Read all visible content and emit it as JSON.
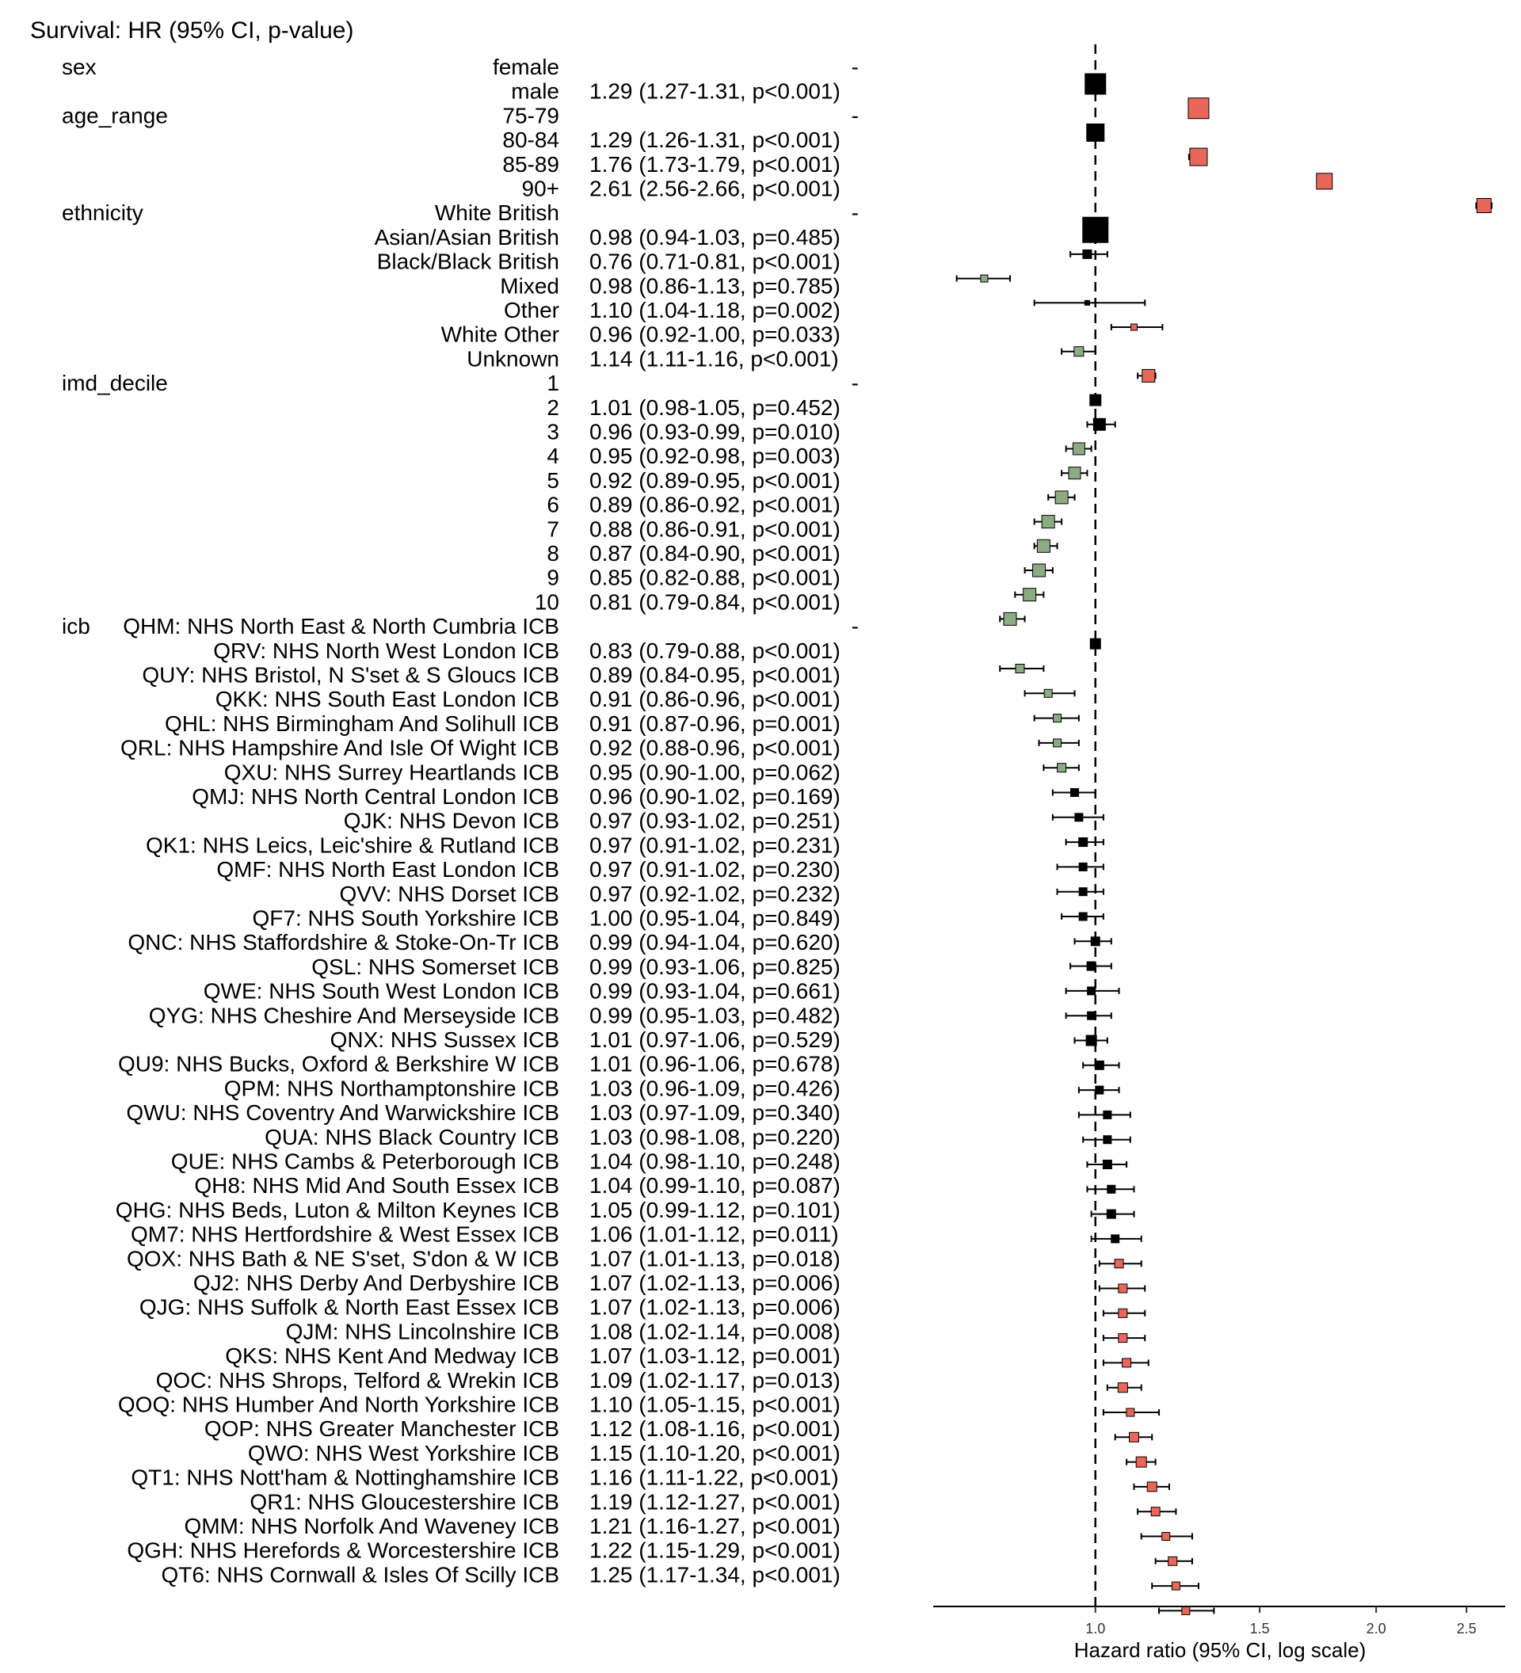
{
  "chart_data": {
    "type": "forest",
    "title": "Survival: HR (95% CI, p-value)",
    "xlabel": "Hazard ratio (95% CI, log scale)",
    "xscale": "log",
    "reference_line": 1.0,
    "xticks": [
      1.0,
      1.5,
      2.0,
      2.5
    ],
    "tick_labels": [
      "1.0",
      "1.5",
      "2.0",
      "2.5"
    ],
    "colors": {
      "reference": "#000000",
      "higher": "#e8675a",
      "lower": "#8bac82",
      "ns": "#000000"
    },
    "rows": [
      {
        "variable": "sex",
        "level": "female",
        "text": "-",
        "hr": 1.0,
        "lo": 1.0,
        "hi": 1.0,
        "size": 26,
        "color": "reference"
      },
      {
        "variable": "",
        "level": "male",
        "text": "1.29 (1.27-1.31, p<0.001)",
        "hr": 1.29,
        "lo": 1.27,
        "hi": 1.31,
        "size": 26,
        "color": "higher"
      },
      {
        "variable": "age_range",
        "level": "75-79",
        "text": "-",
        "hr": 1.0,
        "lo": 1.0,
        "hi": 1.0,
        "size": 22,
        "color": "reference"
      },
      {
        "variable": "",
        "level": "80-84",
        "text": "1.29 (1.26-1.31, p<0.001)",
        "hr": 1.29,
        "lo": 1.26,
        "hi": 1.31,
        "size": 22,
        "color": "higher"
      },
      {
        "variable": "",
        "level": "85-89",
        "text": "1.76 (1.73-1.79, p<0.001)",
        "hr": 1.76,
        "lo": 1.73,
        "hi": 1.79,
        "size": 20,
        "color": "higher"
      },
      {
        "variable": "",
        "level": "90+",
        "text": "2.61 (2.56-2.66, p<0.001)",
        "hr": 2.61,
        "lo": 2.56,
        "hi": 2.66,
        "size": 18,
        "color": "higher"
      },
      {
        "variable": "ethnicity",
        "level": "White British",
        "text": "-",
        "hr": 1.0,
        "lo": 1.0,
        "hi": 1.0,
        "size": 32,
        "color": "reference"
      },
      {
        "variable": "",
        "level": "Asian/Asian British",
        "text": "0.98 (0.94-1.03, p=0.485)",
        "hr": 0.98,
        "lo": 0.94,
        "hi": 1.03,
        "size": 11,
        "color": "ns"
      },
      {
        "variable": "",
        "level": "Black/Black British",
        "text": "0.76 (0.71-0.81, p<0.001)",
        "hr": 0.76,
        "lo": 0.71,
        "hi": 0.81,
        "size": 9,
        "color": "lower"
      },
      {
        "variable": "",
        "level": "Mixed",
        "text": "0.98 (0.86-1.13, p=0.785)",
        "hr": 0.98,
        "lo": 0.86,
        "hi": 1.13,
        "size": 6,
        "color": "ns"
      },
      {
        "variable": "",
        "level": "Other",
        "text": "1.10 (1.04-1.18, p=0.002)",
        "hr": 1.1,
        "lo": 1.04,
        "hi": 1.18,
        "size": 8,
        "color": "higher"
      },
      {
        "variable": "",
        "level": "White Other",
        "text": "0.96 (0.92-1.00, p=0.033)",
        "hr": 0.96,
        "lo": 0.92,
        "hi": 1.0,
        "size": 12,
        "color": "lower"
      },
      {
        "variable": "",
        "level": "Unknown",
        "text": "1.14 (1.11-1.16, p<0.001)",
        "hr": 1.14,
        "lo": 1.11,
        "hi": 1.16,
        "size": 16,
        "color": "higher"
      },
      {
        "variable": "imd_decile",
        "level": "1",
        "text": "-",
        "hr": 1.0,
        "lo": 1.0,
        "hi": 1.0,
        "size": 14,
        "color": "reference"
      },
      {
        "variable": "",
        "level": "2",
        "text": "1.01 (0.98-1.05, p=0.452)",
        "hr": 1.01,
        "lo": 0.98,
        "hi": 1.05,
        "size": 15,
        "color": "ns"
      },
      {
        "variable": "",
        "level": "3",
        "text": "0.96 (0.93-0.99, p=0.010)",
        "hr": 0.96,
        "lo": 0.93,
        "hi": 0.99,
        "size": 15,
        "color": "lower"
      },
      {
        "variable": "",
        "level": "4",
        "text": "0.95 (0.92-0.98, p=0.003)",
        "hr": 0.95,
        "lo": 0.92,
        "hi": 0.98,
        "size": 15,
        "color": "lower"
      },
      {
        "variable": "",
        "level": "5",
        "text": "0.92 (0.89-0.95, p<0.001)",
        "hr": 0.92,
        "lo": 0.89,
        "hi": 0.95,
        "size": 16,
        "color": "lower"
      },
      {
        "variable": "",
        "level": "6",
        "text": "0.89 (0.86-0.92, p<0.001)",
        "hr": 0.89,
        "lo": 0.86,
        "hi": 0.92,
        "size": 16,
        "color": "lower"
      },
      {
        "variable": "",
        "level": "7",
        "text": "0.88 (0.86-0.91, p<0.001)",
        "hr": 0.88,
        "lo": 0.86,
        "hi": 0.91,
        "size": 16,
        "color": "lower"
      },
      {
        "variable": "",
        "level": "8",
        "text": "0.87 (0.84-0.90, p<0.001)",
        "hr": 0.87,
        "lo": 0.84,
        "hi": 0.9,
        "size": 16,
        "color": "lower"
      },
      {
        "variable": "",
        "level": "9",
        "text": "0.85 (0.82-0.88, p<0.001)",
        "hr": 0.85,
        "lo": 0.82,
        "hi": 0.88,
        "size": 16,
        "color": "lower"
      },
      {
        "variable": "",
        "level": "10",
        "text": "0.81 (0.79-0.84, p<0.001)",
        "hr": 0.81,
        "lo": 0.79,
        "hi": 0.84,
        "size": 16,
        "color": "lower"
      },
      {
        "variable": "icb",
        "level": "QHM: NHS North East & North Cumbria ICB",
        "text": "-",
        "hr": 1.0,
        "lo": 1.0,
        "hi": 1.0,
        "size": 13,
        "color": "reference"
      },
      {
        "variable": "",
        "level": "QRV: NHS North West London ICB",
        "text": "0.83 (0.79-0.88, p<0.001)",
        "hr": 0.83,
        "lo": 0.79,
        "hi": 0.88,
        "size": 11,
        "color": "lower"
      },
      {
        "variable": "",
        "level": "QUY: NHS Bristol, N S'set & S Gloucs ICB",
        "text": "0.89 (0.84-0.95, p<0.001)",
        "hr": 0.89,
        "lo": 0.84,
        "hi": 0.95,
        "size": 10,
        "color": "lower"
      },
      {
        "variable": "",
        "level": "QKK: NHS South East London ICB",
        "text": "0.91 (0.86-0.96, p<0.001)",
        "hr": 0.91,
        "lo": 0.86,
        "hi": 0.96,
        "size": 10,
        "color": "lower"
      },
      {
        "variable": "",
        "level": "QHL: NHS Birmingham And Solihull ICB",
        "text": "0.91 (0.87-0.96, p=0.001)",
        "hr": 0.91,
        "lo": 0.87,
        "hi": 0.96,
        "size": 10,
        "color": "lower"
      },
      {
        "variable": "",
        "level": "QRL: NHS Hampshire And Isle Of Wight ICB",
        "text": "0.92 (0.88-0.96, p<0.001)",
        "hr": 0.92,
        "lo": 0.88,
        "hi": 0.96,
        "size": 11,
        "color": "lower"
      },
      {
        "variable": "",
        "level": "QXU: NHS Surrey Heartlands ICB",
        "text": "0.95 (0.90-1.00, p=0.062)",
        "hr": 0.95,
        "lo": 0.9,
        "hi": 1.0,
        "size": 10,
        "color": "ns"
      },
      {
        "variable": "",
        "level": "QMJ: NHS North Central London ICB",
        "text": "0.96 (0.90-1.02, p=0.169)",
        "hr": 0.96,
        "lo": 0.9,
        "hi": 1.02,
        "size": 10,
        "color": "ns"
      },
      {
        "variable": "",
        "level": "QJK: NHS Devon ICB",
        "text": "0.97 (0.93-1.02, p=0.251)",
        "hr": 0.97,
        "lo": 0.93,
        "hi": 1.02,
        "size": 11,
        "color": "ns"
      },
      {
        "variable": "",
        "level": "QK1: NHS Leics, Leic'shire & Rutland ICB",
        "text": "0.97 (0.91-1.02, p=0.231)",
        "hr": 0.97,
        "lo": 0.91,
        "hi": 1.02,
        "size": 10,
        "color": "ns"
      },
      {
        "variable": "",
        "level": "QMF: NHS North East London ICB",
        "text": "0.97 (0.91-1.02, p=0.230)",
        "hr": 0.97,
        "lo": 0.91,
        "hi": 1.02,
        "size": 10,
        "color": "ns"
      },
      {
        "variable": "",
        "level": "QVV: NHS Dorset ICB",
        "text": "0.97 (0.92-1.02, p=0.232)",
        "hr": 0.97,
        "lo": 0.92,
        "hi": 1.02,
        "size": 10,
        "color": "ns"
      },
      {
        "variable": "",
        "level": "QF7: NHS South Yorkshire ICB",
        "text": "1.00 (0.95-1.04, p=0.849)",
        "hr": 1.0,
        "lo": 0.95,
        "hi": 1.04,
        "size": 11,
        "color": "ns"
      },
      {
        "variable": "",
        "level": "QNC: NHS Staffordshire & Stoke-On-Tr ICB",
        "text": "0.99 (0.94-1.04, p=0.620)",
        "hr": 0.99,
        "lo": 0.94,
        "hi": 1.04,
        "size": 11,
        "color": "ns"
      },
      {
        "variable": "",
        "level": "QSL: NHS Somerset ICB",
        "text": "0.99 (0.93-1.06, p=0.825)",
        "hr": 0.99,
        "lo": 0.93,
        "hi": 1.06,
        "size": 10,
        "color": "ns"
      },
      {
        "variable": "",
        "level": "QWE: NHS South West London ICB",
        "text": "0.99 (0.93-1.04, p=0.661)",
        "hr": 0.99,
        "lo": 0.93,
        "hi": 1.04,
        "size": 10,
        "color": "ns"
      },
      {
        "variable": "",
        "level": "QYG: NHS Cheshire And Merseyside ICB",
        "text": "0.99 (0.95-1.03, p=0.482)",
        "hr": 0.99,
        "lo": 0.95,
        "hi": 1.03,
        "size": 13,
        "color": "ns"
      },
      {
        "variable": "",
        "level": "QNX: NHS Sussex ICB",
        "text": "1.01 (0.97-1.06, p=0.529)",
        "hr": 1.01,
        "lo": 0.97,
        "hi": 1.06,
        "size": 11,
        "color": "ns"
      },
      {
        "variable": "",
        "level": "QU9: NHS Bucks, Oxford & Berkshire W ICB",
        "text": "1.01 (0.96-1.06, p=0.678)",
        "hr": 1.01,
        "lo": 0.96,
        "hi": 1.06,
        "size": 10,
        "color": "ns"
      },
      {
        "variable": "",
        "level": "QPM: NHS Northamptonshire ICB",
        "text": "1.03 (0.96-1.09, p=0.426)",
        "hr": 1.03,
        "lo": 0.96,
        "hi": 1.09,
        "size": 10,
        "color": "ns"
      },
      {
        "variable": "",
        "level": "QWU: NHS Coventry And Warwickshire ICB",
        "text": "1.03 (0.97-1.09, p=0.340)",
        "hr": 1.03,
        "lo": 0.97,
        "hi": 1.09,
        "size": 10,
        "color": "ns"
      },
      {
        "variable": "",
        "level": "QUA: NHS Black Country ICB",
        "text": "1.03 (0.98-1.08, p=0.220)",
        "hr": 1.03,
        "lo": 0.98,
        "hi": 1.08,
        "size": 11,
        "color": "ns"
      },
      {
        "variable": "",
        "level": "QUE: NHS Cambs & Peterborough ICB",
        "text": "1.04 (0.98-1.10, p=0.248)",
        "hr": 1.04,
        "lo": 0.98,
        "hi": 1.1,
        "size": 10,
        "color": "ns"
      },
      {
        "variable": "",
        "level": "QH8: NHS Mid And South Essex ICB",
        "text": "1.04 (0.99-1.10, p=0.087)",
        "hr": 1.04,
        "lo": 0.99,
        "hi": 1.1,
        "size": 11,
        "color": "ns"
      },
      {
        "variable": "",
        "level": "QHG: NHS Beds, Luton & Milton Keynes ICB",
        "text": "1.05 (0.99-1.12, p=0.101)",
        "hr": 1.05,
        "lo": 0.99,
        "hi": 1.12,
        "size": 10,
        "color": "ns"
      },
      {
        "variable": "",
        "level": "QM7: NHS Hertfordshire & West Essex ICB",
        "text": "1.06 (1.01-1.12, p=0.011)",
        "hr": 1.06,
        "lo": 1.01,
        "hi": 1.12,
        "size": 11,
        "color": "higher"
      },
      {
        "variable": "",
        "level": "QOX: NHS Bath & NE S'set, S'don & W ICB",
        "text": "1.07 (1.01-1.13, p=0.018)",
        "hr": 1.07,
        "lo": 1.01,
        "hi": 1.13,
        "size": 11,
        "color": "higher"
      },
      {
        "variable": "",
        "level": "QJ2: NHS Derby And Derbyshire ICB",
        "text": "1.07 (1.02-1.13, p=0.006)",
        "hr": 1.07,
        "lo": 1.02,
        "hi": 1.13,
        "size": 11,
        "color": "higher"
      },
      {
        "variable": "",
        "level": "QJG: NHS Suffolk & North East Essex ICB",
        "text": "1.07 (1.02-1.13, p=0.006)",
        "hr": 1.07,
        "lo": 1.02,
        "hi": 1.13,
        "size": 11,
        "color": "higher"
      },
      {
        "variable": "",
        "level": "QJM: NHS Lincolnshire ICB",
        "text": "1.08 (1.02-1.14, p=0.008)",
        "hr": 1.08,
        "lo": 1.02,
        "hi": 1.14,
        "size": 11,
        "color": "higher"
      },
      {
        "variable": "",
        "level": "QKS: NHS Kent And Medway ICB",
        "text": "1.07 (1.03-1.12, p=0.001)",
        "hr": 1.07,
        "lo": 1.03,
        "hi": 1.12,
        "size": 12,
        "color": "higher"
      },
      {
        "variable": "",
        "level": "QOC: NHS Shrops, Telford & Wrekin ICB",
        "text": "1.09 (1.02-1.17, p=0.013)",
        "hr": 1.09,
        "lo": 1.02,
        "hi": 1.17,
        "size": 10,
        "color": "higher"
      },
      {
        "variable": "",
        "level": "QOQ: NHS Humber And North Yorkshire ICB",
        "text": "1.10 (1.05-1.15, p<0.001)",
        "hr": 1.1,
        "lo": 1.05,
        "hi": 1.15,
        "size": 12,
        "color": "higher"
      },
      {
        "variable": "",
        "level": "QOP: NHS Greater Manchester ICB",
        "text": "1.12 (1.08-1.16, p<0.001)",
        "hr": 1.12,
        "lo": 1.08,
        "hi": 1.16,
        "size": 13,
        "color": "higher"
      },
      {
        "variable": "",
        "level": "QWO: NHS West Yorkshire ICB",
        "text": "1.15 (1.10-1.20, p<0.001)",
        "hr": 1.15,
        "lo": 1.1,
        "hi": 1.2,
        "size": 12,
        "color": "higher"
      },
      {
        "variable": "",
        "level": "QT1: NHS Nott'ham & Nottinghamshire ICB",
        "text": "1.16 (1.11-1.22, p<0.001)",
        "hr": 1.16,
        "lo": 1.11,
        "hi": 1.22,
        "size": 11,
        "color": "higher"
      },
      {
        "variable": "",
        "level": "QR1: NHS Gloucestershire ICB",
        "text": "1.19 (1.12-1.27, p<0.001)",
        "hr": 1.19,
        "lo": 1.12,
        "hi": 1.27,
        "size": 10,
        "color": "higher"
      },
      {
        "variable": "",
        "level": "QMM: NHS Norfolk And Waveney ICB",
        "text": "1.21 (1.16-1.27, p<0.001)",
        "hr": 1.21,
        "lo": 1.16,
        "hi": 1.27,
        "size": 11,
        "color": "higher"
      },
      {
        "variable": "",
        "level": "QGH: NHS Herefords & Worcestershire ICB",
        "text": "1.22 (1.15-1.29, p<0.001)",
        "hr": 1.22,
        "lo": 1.15,
        "hi": 1.29,
        "size": 10,
        "color": "higher"
      },
      {
        "variable": "",
        "level": "QT6: NHS Cornwall & Isles Of Scilly ICB",
        "text": "1.25 (1.17-1.34, p<0.001)",
        "hr": 1.25,
        "lo": 1.17,
        "hi": 1.34,
        "size": 10,
        "color": "higher"
      }
    ]
  }
}
